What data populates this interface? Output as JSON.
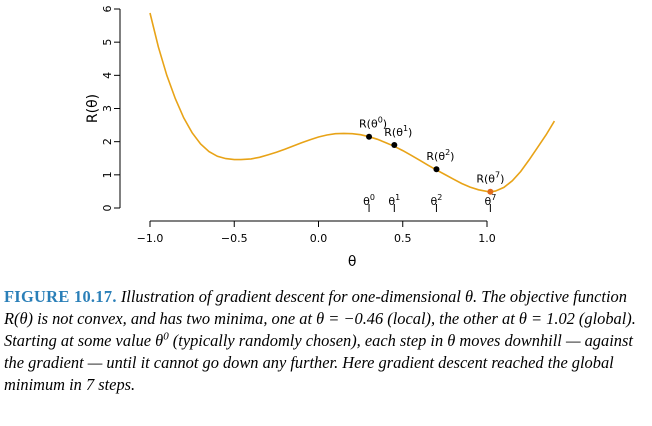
{
  "chart_data": {
    "type": "line",
    "xlabel": "θ",
    "ylabel": "R(θ)",
    "xlim": [
      -1.1,
      1.45
    ],
    "ylim": [
      -0.2,
      6.2
    ],
    "xticks": [
      -1.0,
      -0.5,
      0.0,
      0.5,
      1.0
    ],
    "xtick_labels": [
      "−1.0",
      "−0.5",
      "0.0",
      "0.5",
      "1.0"
    ],
    "yticks": [
      0,
      1,
      2,
      3,
      4,
      5,
      6
    ],
    "ytick_labels": [
      "0",
      "1",
      "2",
      "3",
      "4",
      "5",
      "6"
    ],
    "grid": false,
    "curve_color": "#e8a317",
    "highlight_color": "#e06a1b",
    "series": [
      {
        "x": [
          -1.0,
          -0.95,
          -0.9,
          -0.85,
          -0.8,
          -0.75,
          -0.7,
          -0.65,
          -0.6,
          -0.55,
          -0.5,
          -0.46,
          -0.4,
          -0.35,
          -0.3,
          -0.25,
          -0.2,
          -0.15,
          -0.1,
          -0.05,
          0.0,
          0.05,
          0.1,
          0.15,
          0.2,
          0.25,
          0.3,
          0.35,
          0.4,
          0.45,
          0.5,
          0.55,
          0.6,
          0.65,
          0.7,
          0.75,
          0.8,
          0.85,
          0.9,
          0.95,
          1.0,
          1.02,
          1.05,
          1.1,
          1.15,
          1.2,
          1.25,
          1.3,
          1.35,
          1.4
        ],
        "y": [
          5.88,
          4.85,
          4.0,
          3.3,
          2.72,
          2.27,
          1.93,
          1.7,
          1.56,
          1.49,
          1.46,
          1.46,
          1.48,
          1.53,
          1.6,
          1.68,
          1.77,
          1.87,
          1.97,
          2.06,
          2.14,
          2.2,
          2.24,
          2.25,
          2.24,
          2.21,
          2.15,
          2.07,
          1.97,
          1.86,
          1.73,
          1.59,
          1.44,
          1.29,
          1.15,
          1.01,
          0.87,
          0.74,
          0.63,
          0.55,
          0.5,
          0.49,
          0.51,
          0.62,
          0.82,
          1.1,
          1.45,
          1.82,
          2.2,
          2.62
        ]
      }
    ],
    "steps": [
      {
        "label": "θ",
        "sup": "0",
        "x": 0.3,
        "y": 2.15
      },
      {
        "label": "θ",
        "sup": "1",
        "x": 0.45,
        "y": 1.9
      },
      {
        "label": "θ",
        "sup": "2",
        "x": 0.7,
        "y": 1.17
      },
      {
        "label": "θ",
        "sup": "7",
        "x": 1.02,
        "y": 0.49
      }
    ]
  },
  "caption": {
    "label": "FIGURE 10.17.",
    "p1": " Illustration of gradient descent for one-dimensional θ. The objective function R(θ) is not convex, and has two minima, one at θ = −0.46 (local), the other at θ = 1.02 (global). Starting at some value θ",
    "p1_sup": "0",
    "p2": " (typically randomly chosen), each step in θ moves downhill — against the gradient — until it cannot go down any further. Here gradient descent reached the global minimum in 7 steps."
  }
}
